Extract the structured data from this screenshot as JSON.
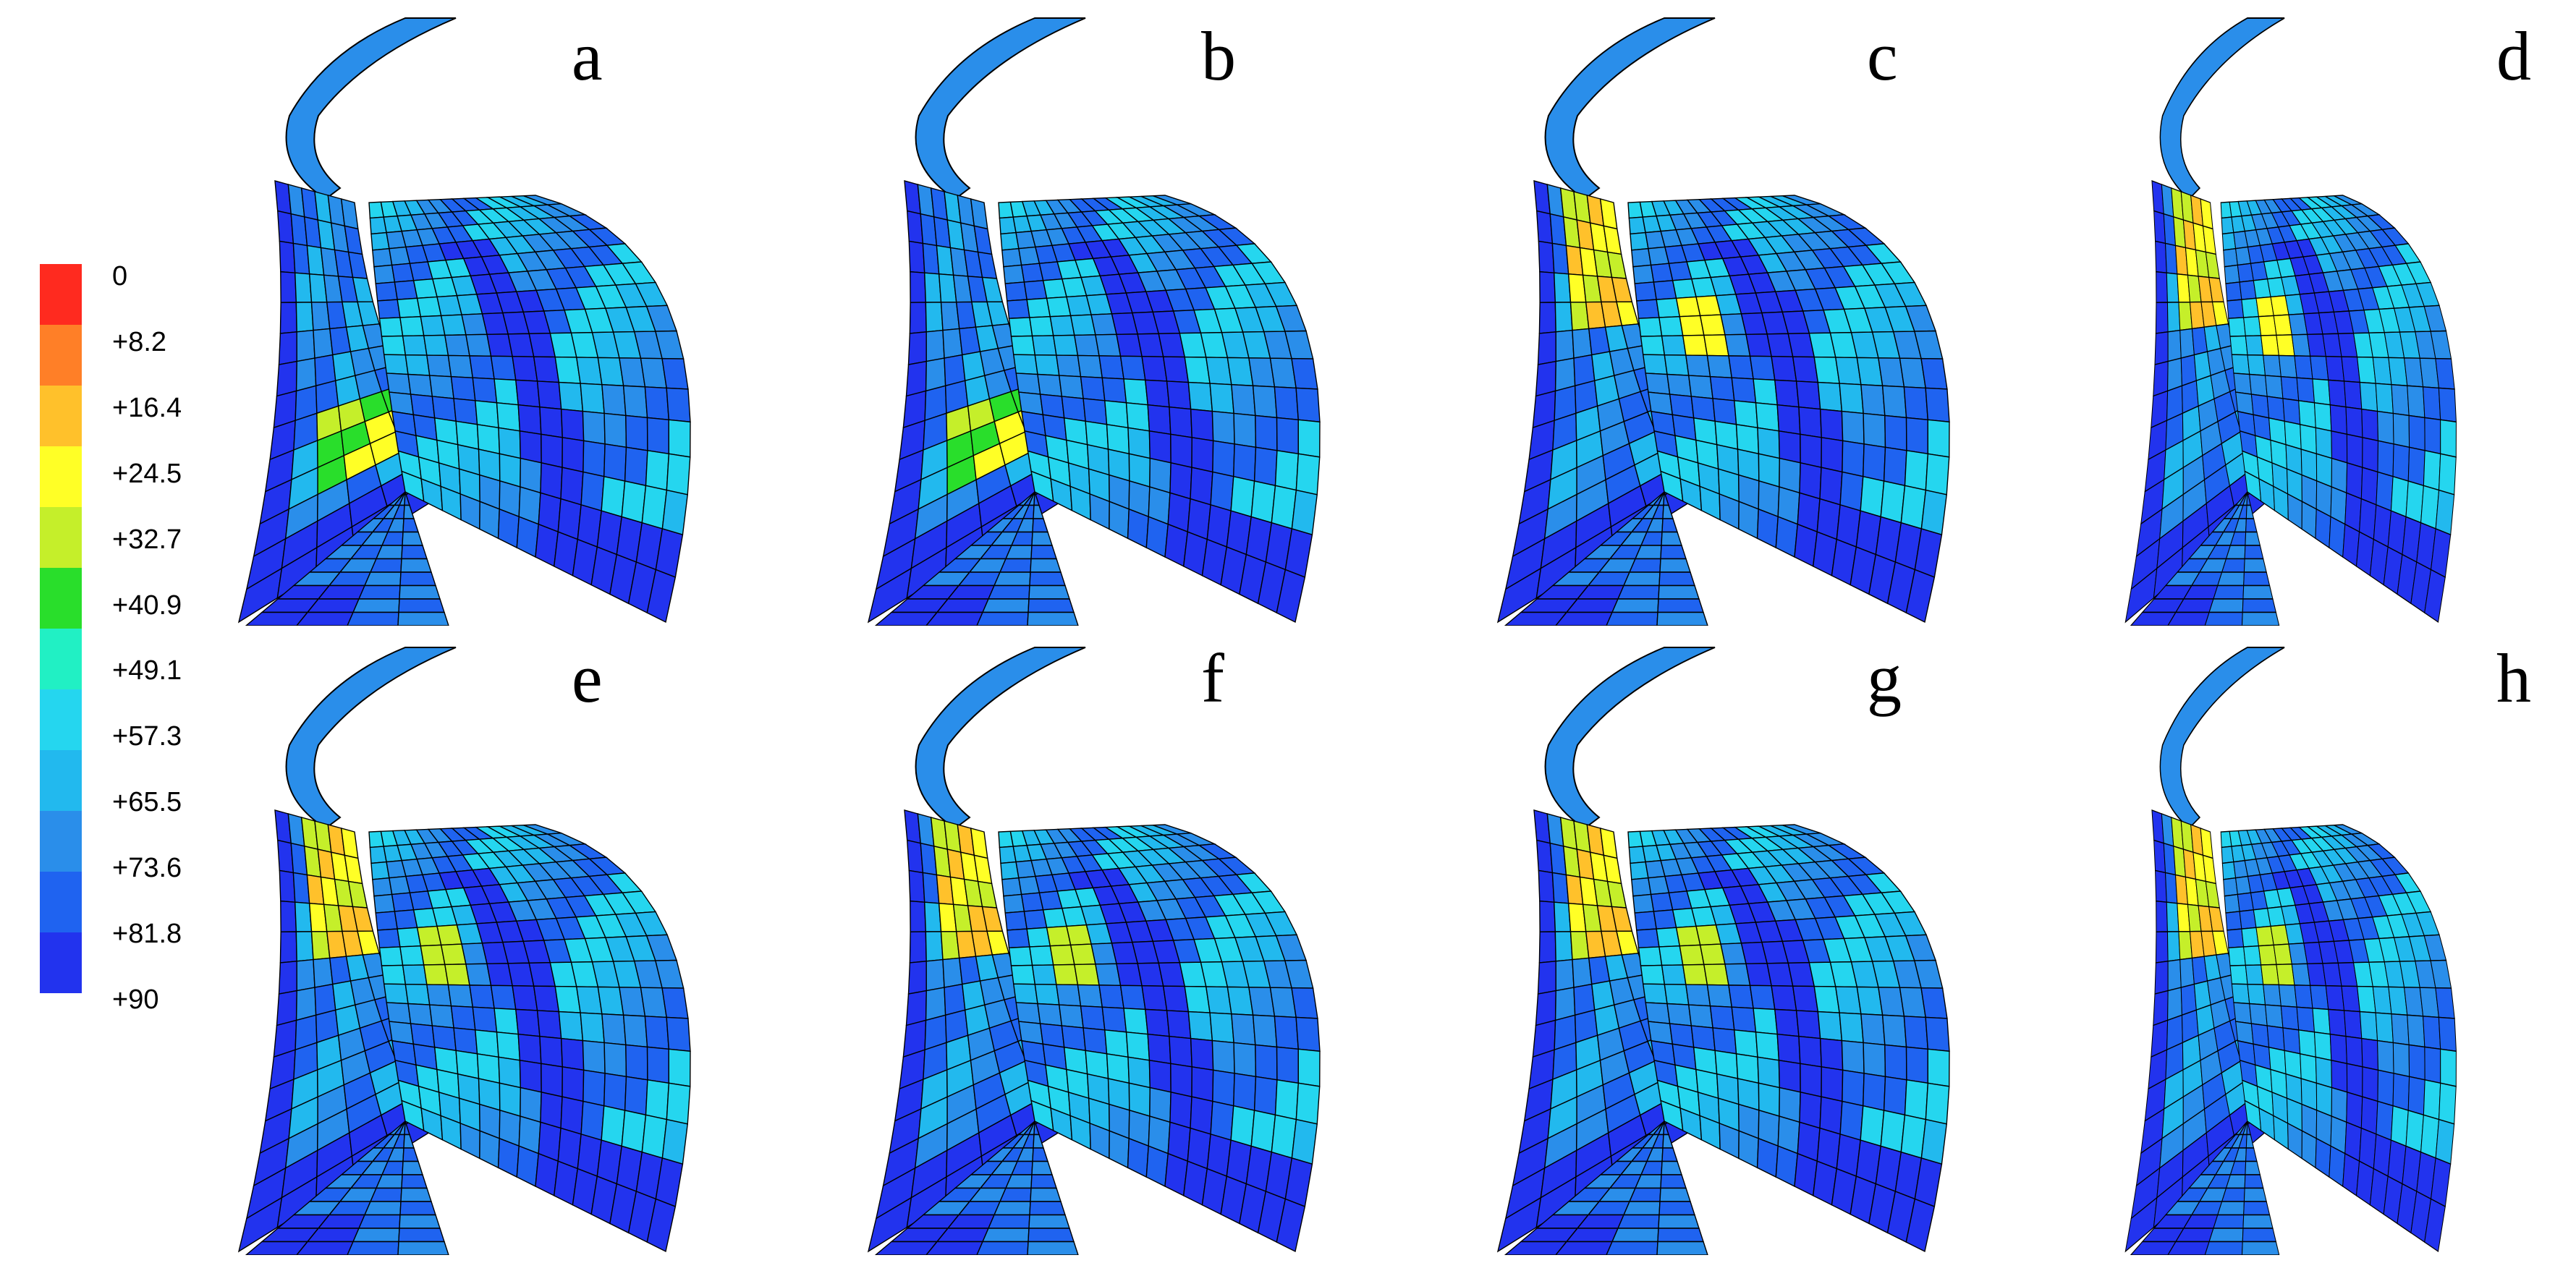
{
  "colorbar": {
    "labels": [
      "0",
      "+8.2",
      "+16.4",
      "+24.5",
      "+32.7",
      "+40.9",
      "+49.1",
      "+57.3",
      "+65.5",
      "+73.6",
      "+81.8",
      "+90"
    ],
    "colors": [
      "#ff2a1f",
      "#ff7f27",
      "#ffc12b",
      "#ffff26",
      "#c5ef2a",
      "#29de2b",
      "#21f0c4",
      "#25d6ef",
      "#22b9ee",
      "#2a8eea",
      "#1f63f0",
      "#2233ee"
    ]
  },
  "panels": [
    {
      "label": "a",
      "variant": 0
    },
    {
      "label": "b",
      "variant": 0
    },
    {
      "label": "c",
      "variant": 1
    },
    {
      "label": "d",
      "variant": 1
    },
    {
      "label": "e",
      "variant": 2
    },
    {
      "label": "f",
      "variant": 2
    },
    {
      "label": "g",
      "variant": 2
    },
    {
      "label": "h",
      "variant": 3
    }
  ]
}
